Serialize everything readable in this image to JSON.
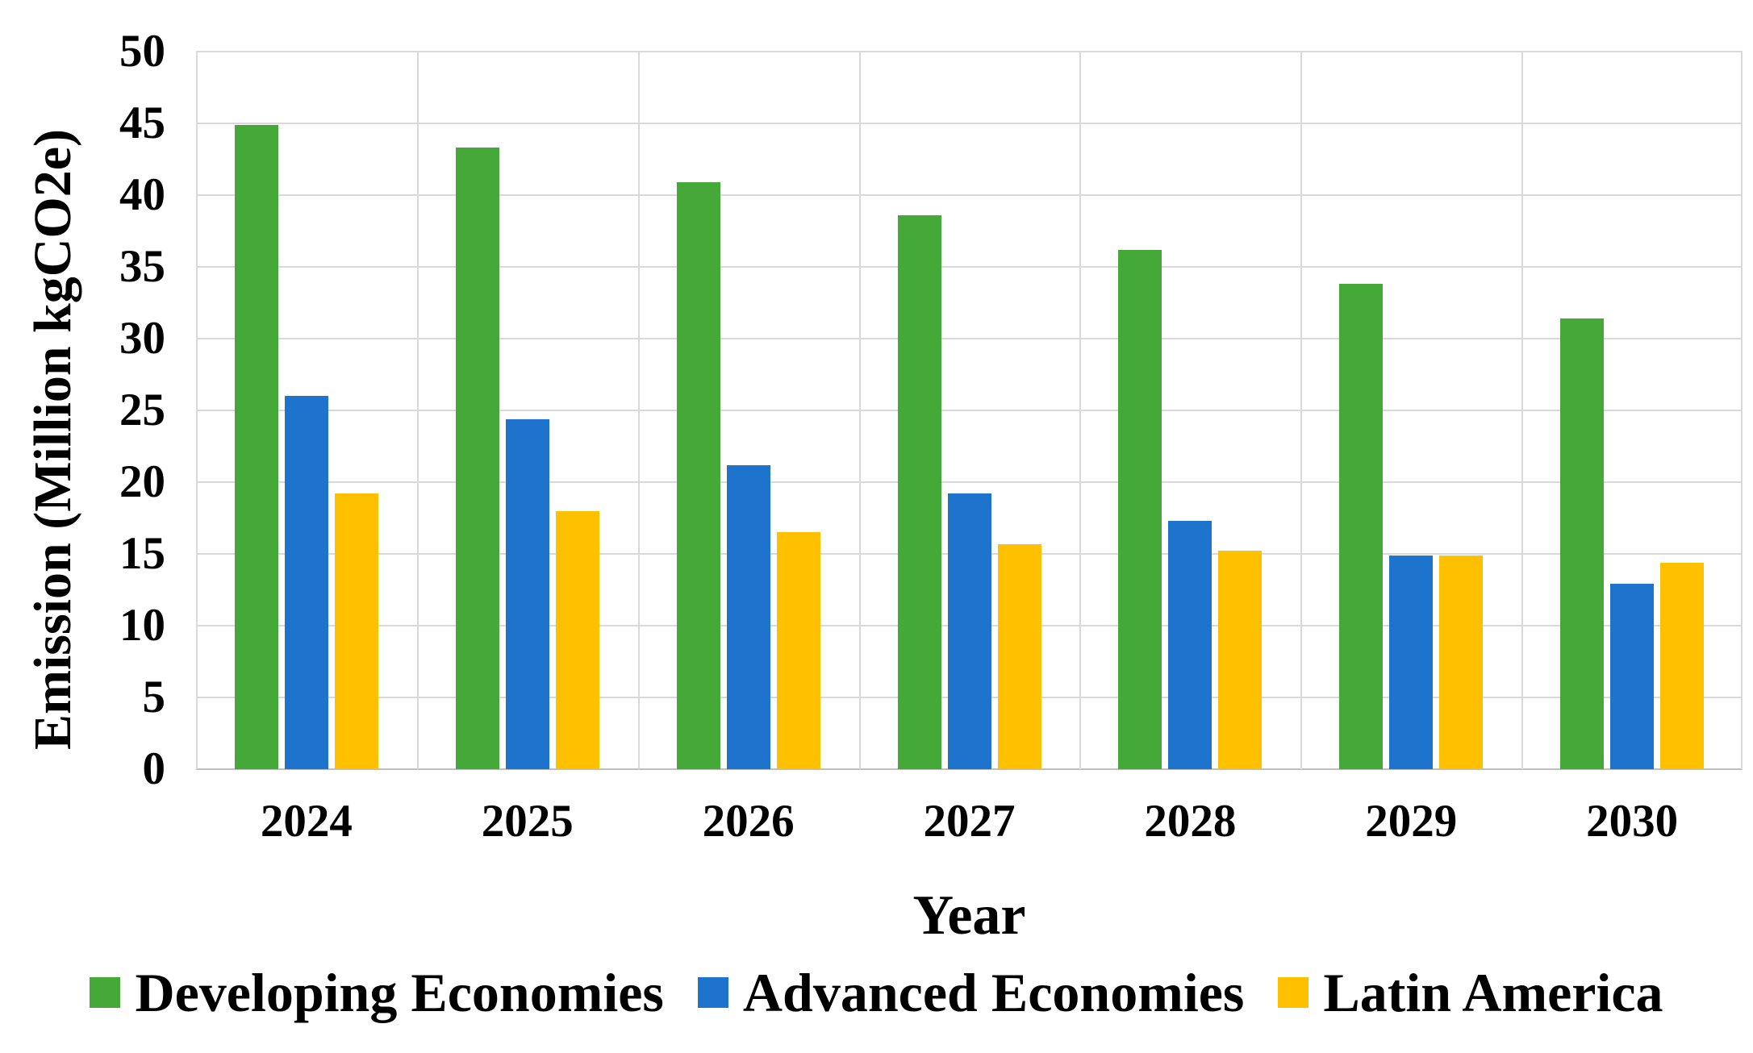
{
  "chart_data": {
    "type": "bar",
    "title": "",
    "categories": [
      "2024",
      "2025",
      "2026",
      "2027",
      "2028",
      "2029",
      "2030"
    ],
    "series": [
      {
        "name": "Developing Economies",
        "color": "#45A93A",
        "values": [
          44.9,
          43.3,
          40.9,
          38.6,
          36.2,
          33.8,
          31.4
        ]
      },
      {
        "name": "Advanced Economies",
        "color": "#1E74CC",
        "values": [
          26.0,
          24.4,
          21.2,
          19.2,
          17.3,
          14.9,
          12.9
        ]
      },
      {
        "name": "Latin America",
        "color": "#FFC000",
        "values": [
          19.2,
          18.0,
          16.5,
          15.7,
          15.2,
          14.9,
          14.4
        ]
      }
    ],
    "xlabel": "Year",
    "ylabel": "Emission (Million kgCO2e)",
    "ylim": [
      0,
      50
    ],
    "ytick_step": 5,
    "ytick_labels": [
      "0",
      "5",
      "10",
      "15",
      "20",
      "25",
      "30",
      "35",
      "40",
      "45",
      "50"
    ],
    "grid": true,
    "legend_position": "bottom",
    "colors": {
      "gridline": "#D9D9D9",
      "axis_line": "#BFBFBF",
      "text": "#000000",
      "background": "#FFFFFF"
    }
  }
}
